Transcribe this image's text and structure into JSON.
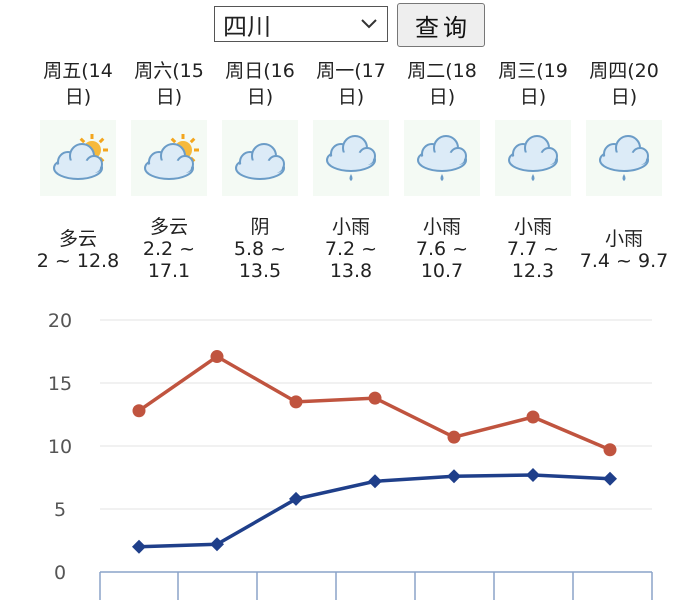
{
  "header": {
    "province_select_value": "四川",
    "query_button_label": "查询"
  },
  "days": [
    {
      "label": "周五(14日)",
      "icon": "partly-cloudy-icon",
      "weather": "多云",
      "temp": "2 ~ 12.8"
    },
    {
      "label": "周六(15日)",
      "icon": "partly-cloudy-icon",
      "weather": "多云",
      "temp": "2.2 ~ 17.1"
    },
    {
      "label": "周日(16日)",
      "icon": "overcast-icon",
      "weather": "阴",
      "temp": "5.8 ~ 13.5"
    },
    {
      "label": "周一(17日)",
      "icon": "light-rain-icon",
      "weather": "小雨",
      "temp": "7.2 ~ 13.8"
    },
    {
      "label": "周二(18日)",
      "icon": "light-rain-icon",
      "weather": "小雨",
      "temp": "7.6 ~ 10.7"
    },
    {
      "label": "周三(19日)",
      "icon": "light-rain-icon",
      "weather": "小雨",
      "temp": "7.7 ~ 12.3"
    },
    {
      "label": "周四(20日)",
      "icon": "light-rain-icon",
      "weather": "小雨",
      "temp": "7.4 ~ 9.7"
    }
  ],
  "chart_data": {
    "type": "line",
    "ylim": [
      0,
      20
    ],
    "yticks": [
      0,
      5,
      10,
      15,
      20
    ],
    "grid": true,
    "series": [
      {
        "color": "#c0543f",
        "values": [
          12.8,
          17.1,
          13.5,
          13.8,
          10.7,
          12.3,
          9.7
        ]
      },
      {
        "color": "#1f3f8a",
        "values": [
          2,
          2.2,
          5.8,
          7.2,
          7.6,
          7.7,
          7.4
        ]
      }
    ]
  }
}
